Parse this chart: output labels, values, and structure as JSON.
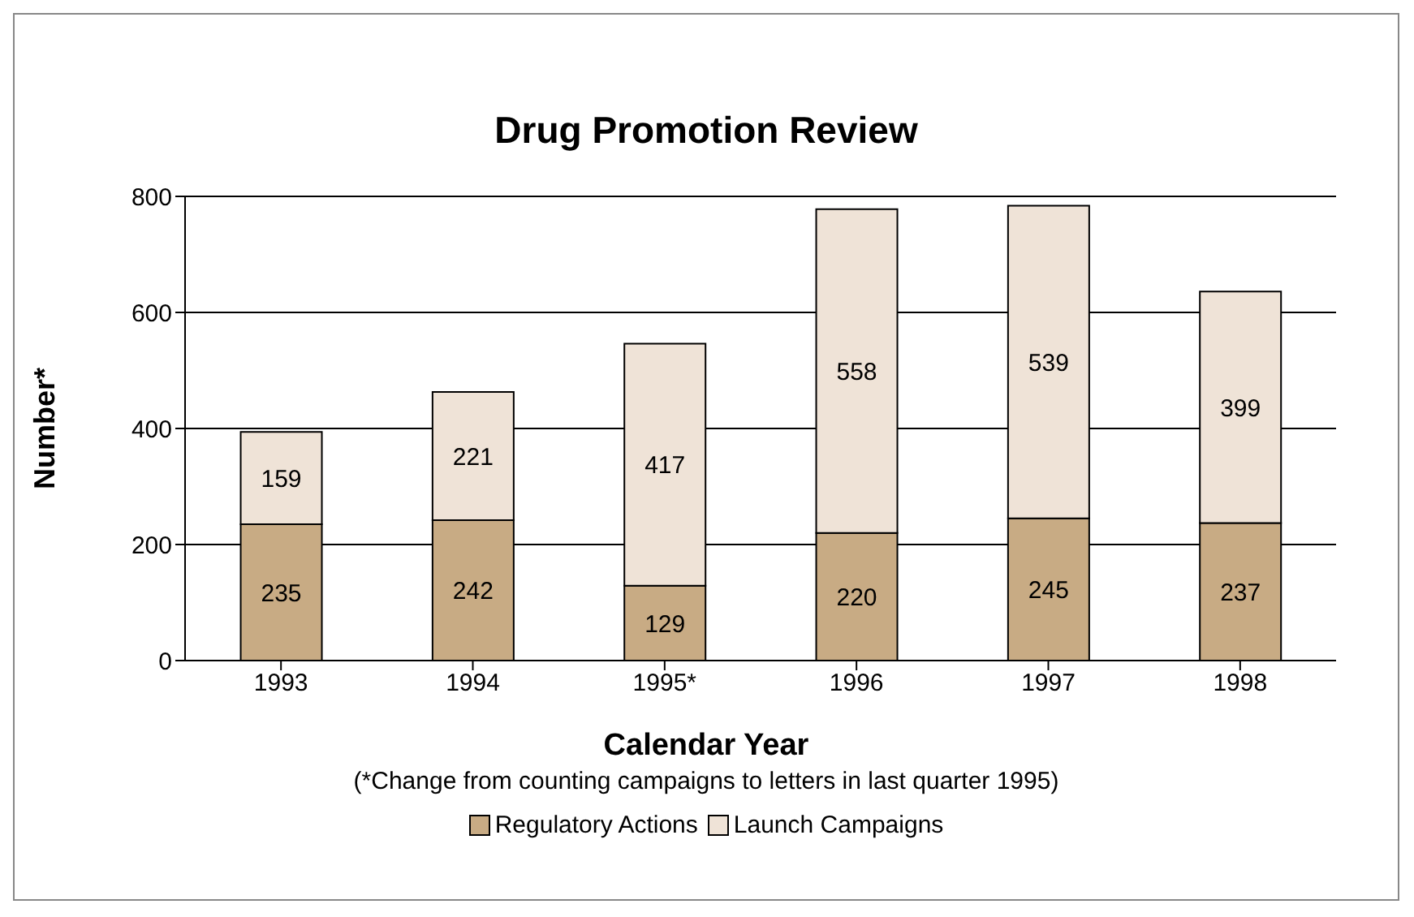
{
  "chart_data": {
    "type": "bar",
    "title": "Drug Promotion Review",
    "xlabel": "Calendar Year",
    "ylabel": "Number*",
    "annotations": [
      "(*Change from counting campaigns to letters in last quarter 1995)"
    ],
    "categories": [
      "1993",
      "1994",
      "1995*",
      "1996",
      "1997",
      "1998"
    ],
    "series": [
      {
        "name": "Regulatory Actions",
        "color": "#c8ab84",
        "values": [
          235,
          242,
          129,
          220,
          245,
          237
        ]
      },
      {
        "name": "Launch Campaigns",
        "color": "#efe3d7",
        "values": [
          159,
          221,
          417,
          558,
          539,
          399
        ]
      }
    ],
    "stacked": true,
    "data_labels": true,
    "ylim": [
      0,
      800
    ],
    "yticks": [
      0,
      200,
      400,
      600,
      800
    ],
    "grid": "y",
    "legend": "bottom"
  }
}
